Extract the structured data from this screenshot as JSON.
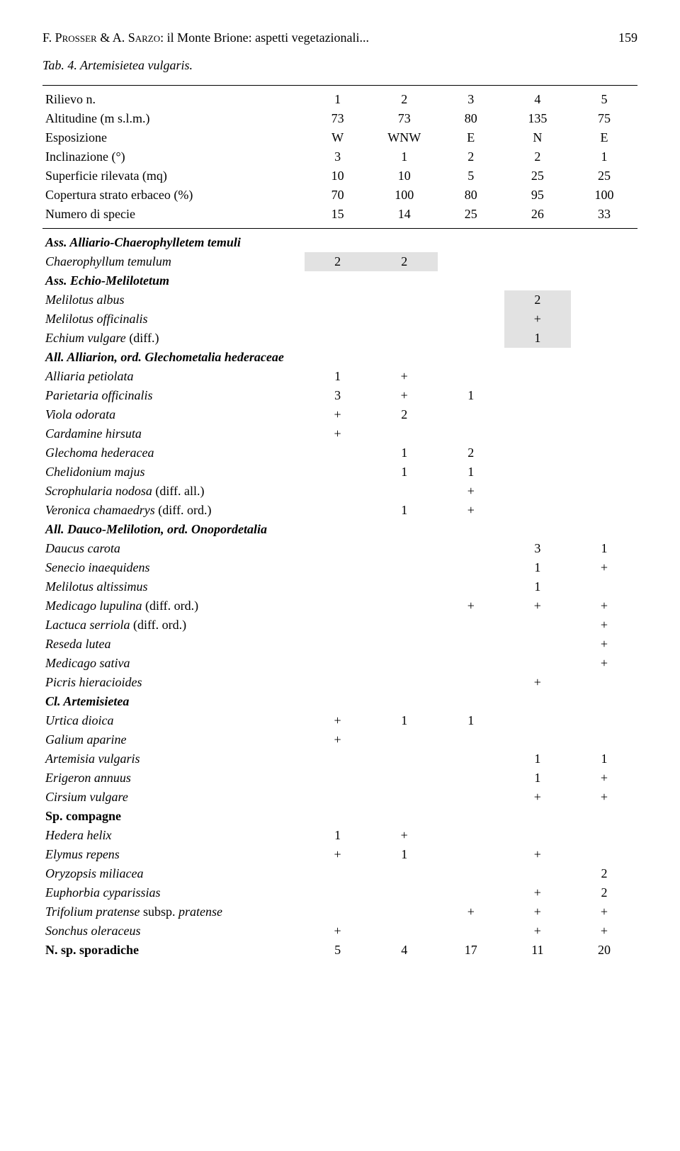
{
  "page_number": "159",
  "running_head_authors": "F. Prosser & A. Sarzo",
  "running_head_title": ": il Monte Brione: aspetti vegetazionali...",
  "caption": "Tab. 4. Artemisietea vulgaris.",
  "header_rows": [
    {
      "label": "Rilievo n.",
      "v": [
        "1",
        "2",
        "3",
        "4",
        "5"
      ]
    },
    {
      "label": "Altitudine (m s.l.m.)",
      "v": [
        "73",
        "73",
        "80",
        "135",
        "75"
      ]
    },
    {
      "label": "Esposizione",
      "v": [
        "W",
        "WNW",
        "E",
        "N",
        "E"
      ]
    },
    {
      "label": "Inclinazione (°)",
      "v": [
        "3",
        "1",
        "2",
        "2",
        "1"
      ]
    },
    {
      "label": "Superficie rilevata (mq)",
      "v": [
        "10",
        "10",
        "5",
        "25",
        "25"
      ]
    },
    {
      "label": "Copertura strato erbaceo (%)",
      "v": [
        "70",
        "100",
        "80",
        "95",
        "100"
      ]
    },
    {
      "label": "Numero di specie",
      "v": [
        "15",
        "14",
        "25",
        "26",
        "33"
      ]
    }
  ],
  "body_rows": [
    {
      "style": "bolditalic",
      "label": "Ass. Alliario-Chaerophylletem temuli",
      "v": [
        "",
        "",
        "",
        "",
        ""
      ],
      "hl": []
    },
    {
      "style": "italic",
      "label": "Chaerophyllum temulum",
      "v": [
        "2",
        "2",
        "",
        "",
        ""
      ],
      "hl": [
        0,
        1
      ]
    },
    {
      "style": "bolditalic",
      "label": "Ass. Echio-Melilotetum",
      "v": [
        "",
        "",
        "",
        "",
        ""
      ],
      "hl": []
    },
    {
      "style": "italic",
      "label": "Melilotus albus",
      "v": [
        "",
        "",
        "",
        "2",
        ""
      ],
      "hl": [
        3
      ]
    },
    {
      "style": "italic",
      "label": "Melilotus officinalis",
      "v": [
        "",
        "",
        "",
        "+",
        ""
      ],
      "hl": [
        3
      ]
    },
    {
      "style": "italic",
      "label_html": "<span class=\"italic\">Echium vulgare</span> (diff.)",
      "v": [
        "",
        "",
        "",
        "1",
        ""
      ],
      "hl": [
        3
      ]
    },
    {
      "style": "bolditalic",
      "label": "All. Alliarion, ord. Glechometalia hederaceae",
      "v": [
        "",
        "",
        "",
        "",
        ""
      ],
      "hl": []
    },
    {
      "style": "italic",
      "label": "Alliaria petiolata",
      "v": [
        "1",
        "+",
        "",
        "",
        ""
      ],
      "hl": []
    },
    {
      "style": "italic",
      "label": "Parietaria officinalis",
      "v": [
        "3",
        "+",
        "1",
        "",
        ""
      ],
      "hl": []
    },
    {
      "style": "italic",
      "label": "Viola odorata",
      "v": [
        "+",
        "2",
        "",
        "",
        ""
      ],
      "hl": []
    },
    {
      "style": "italic",
      "label": "Cardamine hirsuta",
      "v": [
        "+",
        "",
        "",
        "",
        ""
      ],
      "hl": []
    },
    {
      "style": "italic",
      "label": "Glechoma hederacea",
      "v": [
        "",
        "1",
        "2",
        "",
        ""
      ],
      "hl": []
    },
    {
      "style": "italic",
      "label": "Chelidonium majus",
      "v": [
        "",
        "1",
        "1",
        "",
        ""
      ],
      "hl": []
    },
    {
      "style": "italic",
      "label_html": "<span class=\"italic\">Scrophularia nodosa</span> (diff. all.)",
      "v": [
        "",
        "",
        "+",
        "",
        ""
      ],
      "hl": []
    },
    {
      "style": "italic",
      "label_html": "<span class=\"italic\">Veronica chamaedrys</span> (diff. ord.)",
      "v": [
        "",
        "1",
        "+",
        "",
        ""
      ],
      "hl": []
    },
    {
      "style": "bolditalic",
      "label": "All. Dauco-Melilotion, ord. Onopordetalia",
      "v": [
        "",
        "",
        "",
        "",
        ""
      ],
      "hl": []
    },
    {
      "style": "italic",
      "label": "Daucus carota",
      "v": [
        "",
        "",
        "",
        "3",
        "1"
      ],
      "hl": []
    },
    {
      "style": "italic",
      "label": "Senecio inaequidens",
      "v": [
        "",
        "",
        "",
        "1",
        "+"
      ],
      "hl": []
    },
    {
      "style": "italic",
      "label": "Melilotus altissimus",
      "v": [
        "",
        "",
        "",
        "1",
        ""
      ],
      "hl": []
    },
    {
      "style": "italic",
      "label_html": "<span class=\"italic\">Medicago lupulina</span> (diff. ord.)",
      "v": [
        "",
        "",
        "+",
        "+",
        "+"
      ],
      "hl": []
    },
    {
      "style": "italic",
      "label_html": "<span class=\"italic\">Lactuca serriola</span> (diff. ord.)",
      "v": [
        "",
        "",
        "",
        "",
        "+"
      ],
      "hl": []
    },
    {
      "style": "italic",
      "label": "Reseda lutea",
      "v": [
        "",
        "",
        "",
        "",
        "+"
      ],
      "hl": []
    },
    {
      "style": "italic",
      "label": "Medicago sativa",
      "v": [
        "",
        "",
        "",
        "",
        "+"
      ],
      "hl": []
    },
    {
      "style": "italic",
      "label": "Picris hieracioides",
      "v": [
        "",
        "",
        "",
        "+",
        ""
      ],
      "hl": []
    },
    {
      "style": "bolditalic",
      "label": "Cl. Artemisietea",
      "v": [
        "",
        "",
        "",
        "",
        ""
      ],
      "hl": []
    },
    {
      "style": "italic",
      "label": "Urtica dioica",
      "v": [
        "+",
        "1",
        "1",
        "",
        ""
      ],
      "hl": []
    },
    {
      "style": "italic",
      "label": "Galium aparine",
      "v": [
        "+",
        "",
        "",
        "",
        ""
      ],
      "hl": []
    },
    {
      "style": "italic",
      "label": "Artemisia vulgaris",
      "v": [
        "",
        "",
        "",
        "1",
        "1"
      ],
      "hl": []
    },
    {
      "style": "italic",
      "label": "Erigeron annuus",
      "v": [
        "",
        "",
        "",
        "1",
        "+"
      ],
      "hl": []
    },
    {
      "style": "italic",
      "label": "Cirsium vulgare",
      "v": [
        "",
        "",
        "",
        "+",
        "+"
      ],
      "hl": []
    },
    {
      "style": "bold",
      "label": "Sp. compagne",
      "v": [
        "",
        "",
        "",
        "",
        ""
      ],
      "hl": []
    },
    {
      "style": "italic",
      "label": "Hedera helix",
      "v": [
        "1",
        "+",
        "",
        "",
        ""
      ],
      "hl": []
    },
    {
      "style": "italic",
      "label": "Elymus repens",
      "v": [
        "+",
        "1",
        "",
        "+",
        ""
      ],
      "hl": []
    },
    {
      "style": "italic",
      "label": "Oryzopsis miliacea",
      "v": [
        "",
        "",
        "",
        "",
        "2"
      ],
      "hl": []
    },
    {
      "style": "italic",
      "label": "Euphorbia cyparissias",
      "v": [
        "",
        "",
        "",
        "+",
        "2"
      ],
      "hl": []
    },
    {
      "style": "italic",
      "label_html": "<span class=\"italic\">Trifolium pratense</span> subsp. <span class=\"italic\">pratense</span>",
      "v": [
        "",
        "",
        "+",
        "+",
        "+"
      ],
      "hl": []
    },
    {
      "style": "italic",
      "label": "Sonchus oleraceus",
      "v": [
        "+",
        "",
        "",
        "+",
        "+"
      ],
      "hl": []
    },
    {
      "style": "bold",
      "label": "N. sp. sporadiche",
      "v": [
        "5",
        "4",
        "17",
        "11",
        "20"
      ],
      "hl": []
    }
  ],
  "highlight_color": "#e2e2e2"
}
